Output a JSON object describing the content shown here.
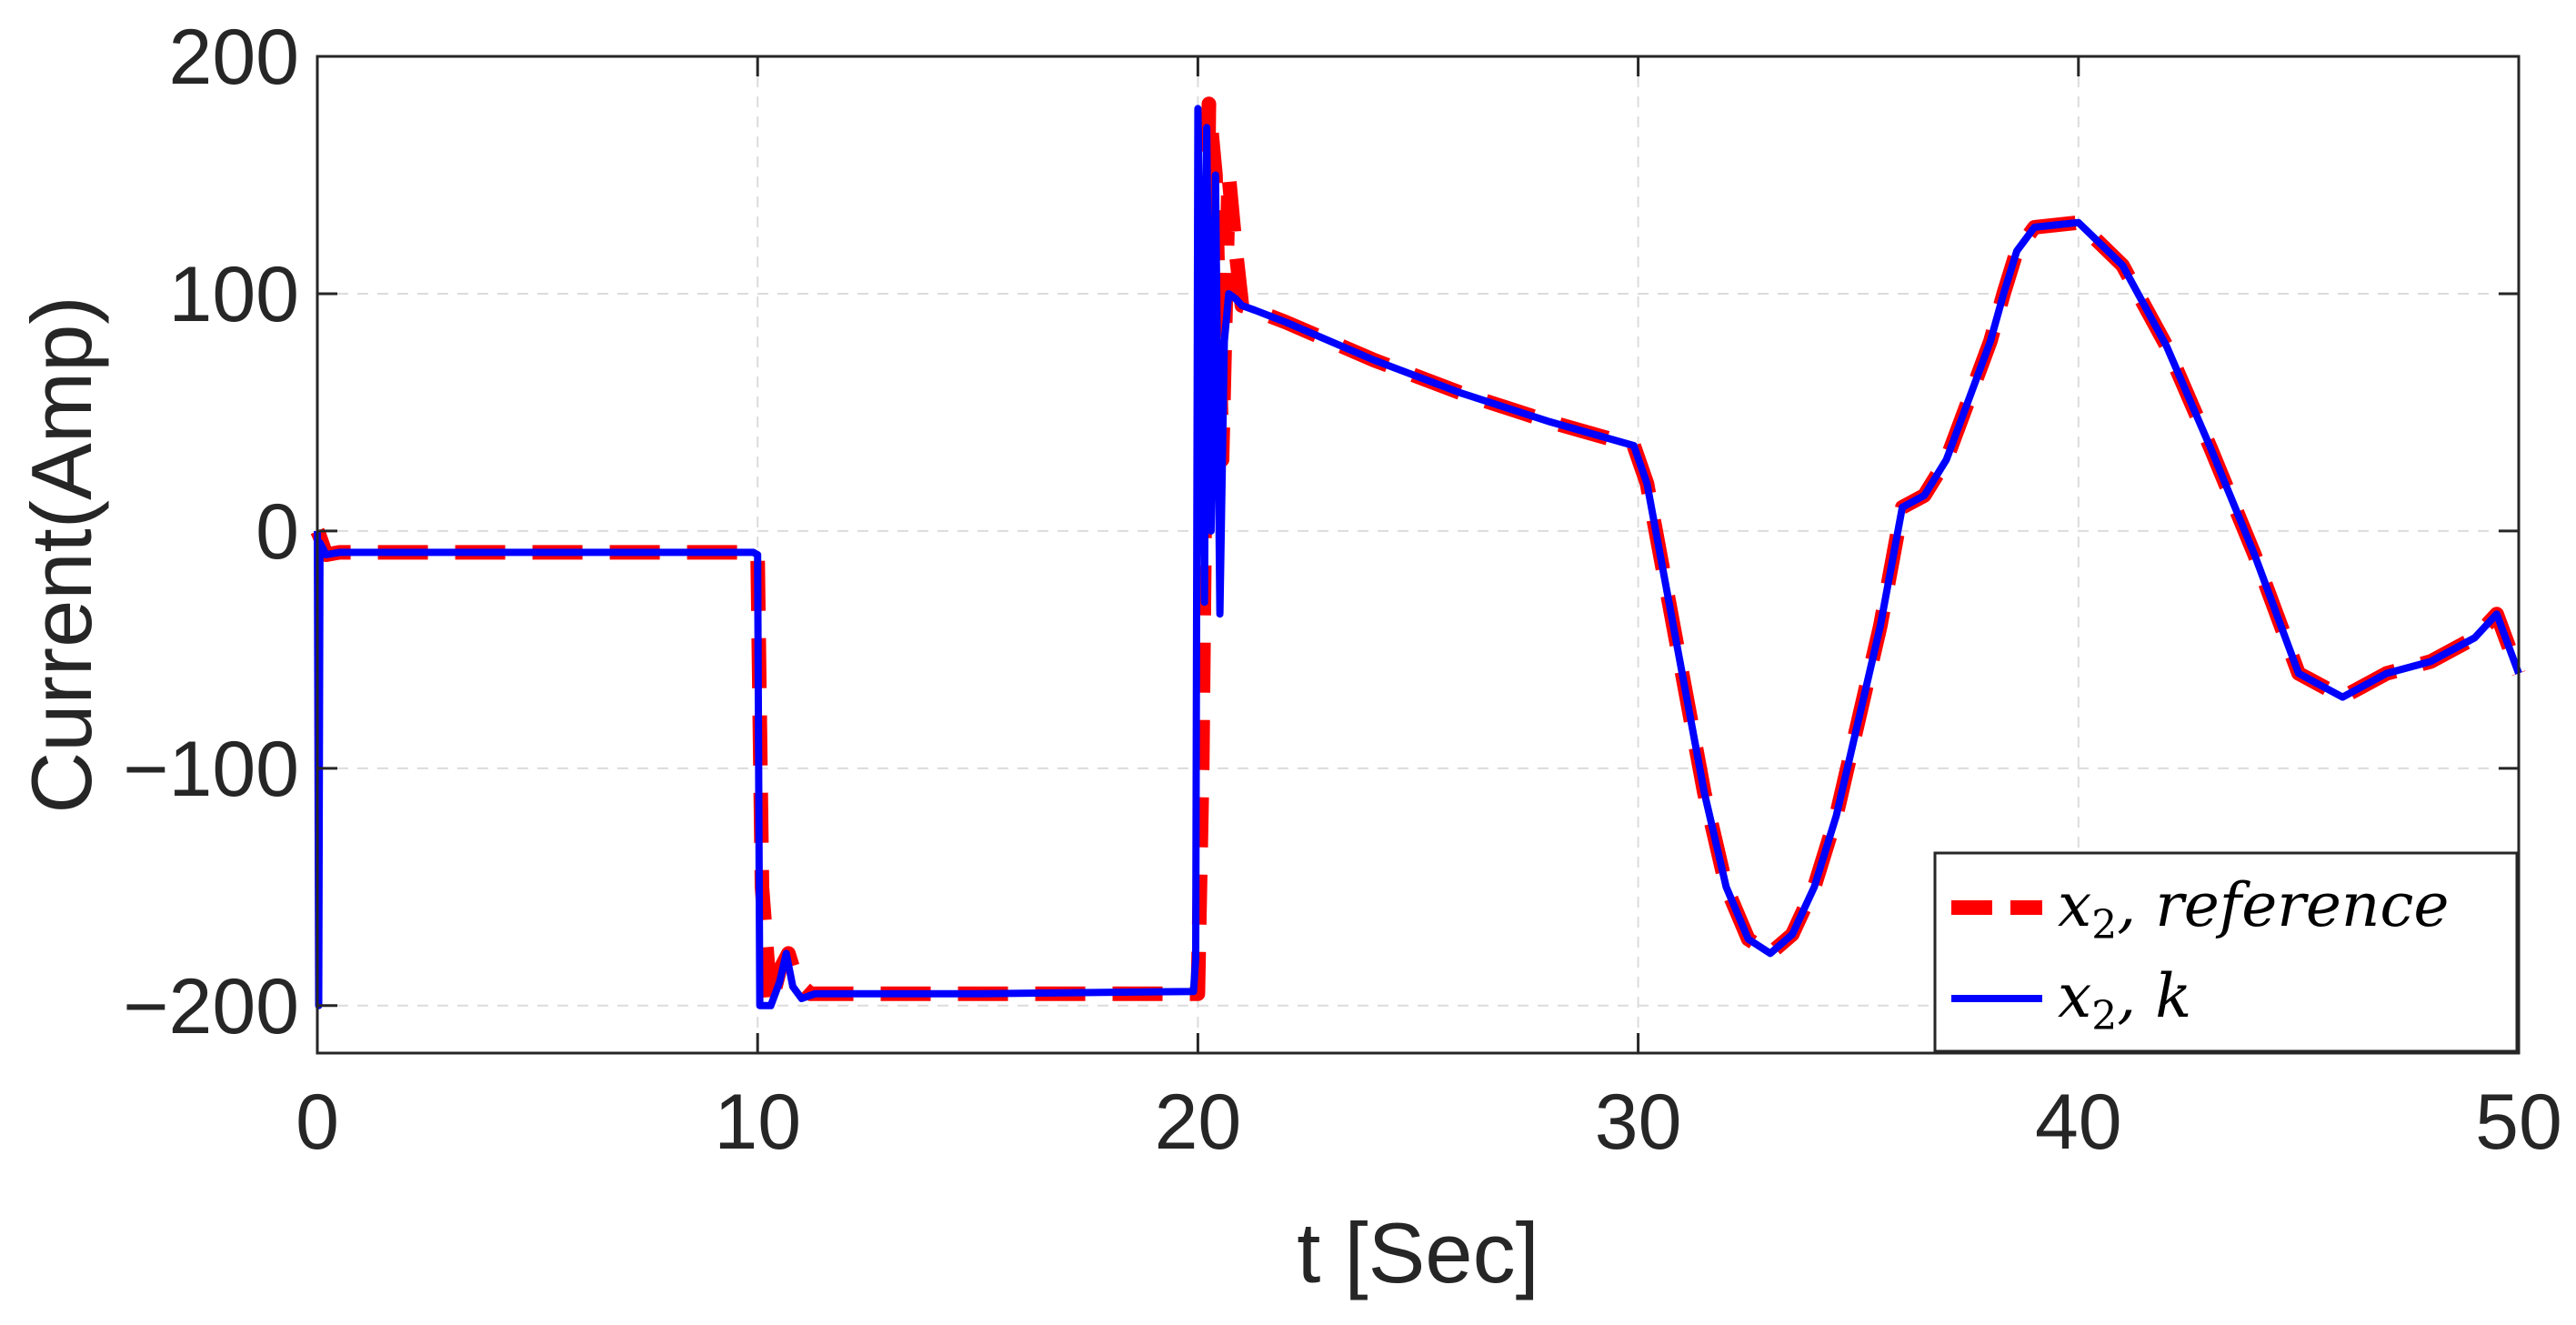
{
  "chart_data": {
    "type": "line",
    "xlabel": "t [Sec]",
    "ylabel": "Current(Amp)",
    "xlim": [
      0,
      50
    ],
    "ylim": [
      -220,
      200
    ],
    "xticks": [
      0,
      10,
      20,
      30,
      40,
      50
    ],
    "yticks": [
      200,
      100,
      0,
      -100,
      -200
    ],
    "xtick_labels": [
      "0",
      "10",
      "20",
      "30",
      "40",
      "50"
    ],
    "ytick_labels": [
      "200",
      "100",
      "0",
      "−100",
      "−200"
    ],
    "grid": true,
    "legend_position": "bottom-right",
    "series": [
      {
        "name": "x2, reference",
        "legend_base": "x",
        "legend_sub": "2",
        "legend_rest": ", reference",
        "color": "#ff0000",
        "style": "dashed",
        "x": [
          0,
          0.05,
          0.2,
          0.5,
          1,
          5,
          9.9,
          10.0,
          10.1,
          10.3,
          10.5,
          10.7,
          10.9,
          11.2,
          12,
          15,
          19.9,
          20.0,
          20.1,
          20.25,
          20.4,
          20.55,
          20.7,
          20.85,
          21.0,
          21.3,
          22,
          24,
          26,
          28,
          29.9,
          30.2,
          30.5,
          31.0,
          31.5,
          32.0,
          32.5,
          33.0,
          33.5,
          34.0,
          34.5,
          35.0,
          35.5,
          36.0,
          36.5,
          37.0,
          37.5,
          38.0,
          38.3,
          38.6,
          39.0,
          40.0,
          41.0,
          42.0,
          43.0,
          44.0,
          45.0,
          46.0,
          47.0,
          48.0,
          49.0,
          49.5,
          50.0
        ],
        "y": [
          0,
          -2,
          -10,
          -9,
          -9,
          -9,
          -9,
          -10,
          -150,
          -200,
          -185,
          -178,
          -190,
          -195,
          -195,
          -195,
          -195,
          -195,
          -100,
          180,
          150,
          30,
          150,
          120,
          95,
          93,
          88,
          72,
          58,
          46,
          36,
          20,
          -10,
          -60,
          -110,
          -150,
          -172,
          -178,
          -170,
          -150,
          -120,
          -80,
          -40,
          10,
          15,
          30,
          55,
          80,
          100,
          118,
          128,
          130,
          112,
          78,
          35,
          -10,
          -60,
          -70,
          -60,
          -55,
          -45,
          -35,
          -60
        ]
      },
      {
        "name": "x2, k",
        "legend_base": "x",
        "legend_sub": "2",
        "legend_rest": ", k",
        "color": "#0000ff",
        "style": "solid",
        "x": [
          0,
          0.03,
          0.06,
          0.2,
          0.5,
          1,
          5,
          9.9,
          10.0,
          10.05,
          10.3,
          10.5,
          10.65,
          10.8,
          11.0,
          11.3,
          12,
          15,
          19.9,
          19.95,
          20.0,
          20.08,
          20.15,
          20.2,
          20.3,
          20.4,
          20.5,
          20.6,
          20.7,
          20.85,
          21.0,
          21.3,
          22,
          24,
          26,
          28,
          29.9,
          30.2,
          30.5,
          31.0,
          31.5,
          32.0,
          32.5,
          33.0,
          33.5,
          34.0,
          34.5,
          35.0,
          35.5,
          36.0,
          36.5,
          37.0,
          37.5,
          38.0,
          38.3,
          38.6,
          39.0,
          40.0,
          41.0,
          42.0,
          43.0,
          44.0,
          45.0,
          46.0,
          47.0,
          48.0,
          49.0,
          49.5,
          50.0
        ],
        "y": [
          0,
          -200,
          -5,
          -10,
          -9,
          -9,
          -9,
          -9,
          -10,
          -200,
          -200,
          -190,
          -178,
          -192,
          -197,
          -195,
          -195,
          -195,
          -194,
          -180,
          178,
          100,
          -30,
          170,
          0,
          150,
          -35,
          80,
          100,
          98,
          95,
          93,
          88,
          72,
          58,
          46,
          36,
          20,
          -10,
          -60,
          -110,
          -150,
          -172,
          -178,
          -170,
          -150,
          -120,
          -80,
          -40,
          10,
          15,
          30,
          55,
          80,
          100,
          118,
          128,
          130,
          112,
          78,
          35,
          -10,
          -60,
          -70,
          -60,
          -55,
          -45,
          -35,
          -60
        ]
      }
    ]
  }
}
